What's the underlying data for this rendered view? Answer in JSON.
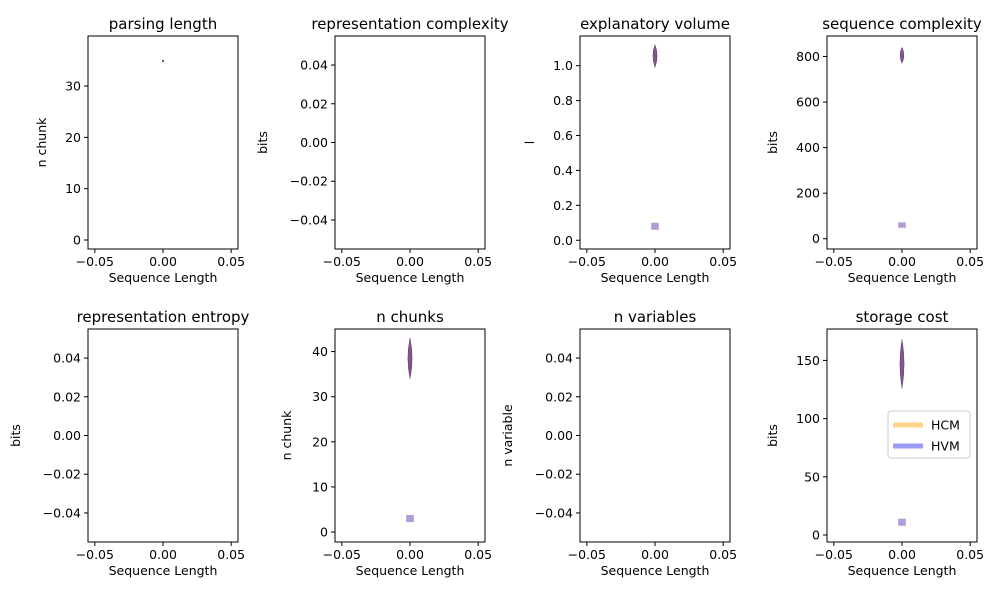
{
  "legend": {
    "placement": "right, inside storage cost panel",
    "entries": [
      {
        "label": "HCM",
        "color": "#ffd58a"
      },
      {
        "label": "HVM",
        "color": "#9c9cf5"
      }
    ]
  },
  "colors": {
    "violin_dark": "#6a3a78",
    "violin_light": "#a58bd0"
  },
  "chart_data": [
    {
      "type": "violin",
      "title": "parsing length",
      "xlabel": "Sequence Length",
      "ylabel": "n chunk",
      "xlim": [
        -0.055,
        0.055
      ],
      "ylim": [
        -1.75,
        39.75
      ],
      "xticks": [
        "−0.05",
        "0.00",
        "0.05"
      ],
      "yticks": [
        {
          "v": 0,
          "label": "0"
        },
        {
          "v": 10,
          "label": "10"
        },
        {
          "v": 20,
          "label": "20"
        },
        {
          "v": 30,
          "label": "30"
        }
      ],
      "violins": [
        {
          "x": 0.0,
          "center": 34.9,
          "low": 34.6,
          "high": 35.1,
          "width": 0.001,
          "shade": "dark"
        }
      ]
    },
    {
      "type": "violin",
      "title": "representation complexity",
      "xlabel": "Sequence Length",
      "ylabel": "bits",
      "xlim": [
        -0.055,
        0.055
      ],
      "ylim": [
        -0.055,
        0.055
      ],
      "xticks": [
        "−0.05",
        "0.00",
        "0.05"
      ],
      "yticks": [
        {
          "v": -0.04,
          "label": "−0.04"
        },
        {
          "v": -0.02,
          "label": "−0.02"
        },
        {
          "v": 0.0,
          "label": "0.00"
        },
        {
          "v": 0.02,
          "label": "0.02"
        },
        {
          "v": 0.04,
          "label": "0.04"
        }
      ],
      "violins": []
    },
    {
      "type": "violin",
      "title": "explanatory volume",
      "xlabel": "Sequence Length",
      "ylabel": "l",
      "xlim": [
        -0.055,
        0.055
      ],
      "ylim": [
        -0.05,
        1.17
      ],
      "xticks": [
        "−0.05",
        "0.00",
        "0.05"
      ],
      "yticks": [
        {
          "v": 0.0,
          "label": "0.0"
        },
        {
          "v": 0.2,
          "label": "0.2"
        },
        {
          "v": 0.4,
          "label": "0.4"
        },
        {
          "v": 0.6,
          "label": "0.6"
        },
        {
          "v": 0.8,
          "label": "0.8"
        },
        {
          "v": 1.0,
          "label": "1.0"
        }
      ],
      "violins": [
        {
          "x": 0.0,
          "center": 1.06,
          "low": 0.99,
          "high": 1.12,
          "width": 0.0022,
          "shade": "dark"
        },
        {
          "x": 0.0,
          "center": 0.08,
          "low": 0.06,
          "high": 0.1,
          "width": 0.0028,
          "shade": "light",
          "shape": "box"
        }
      ]
    },
    {
      "type": "violin",
      "title": "sequence complexity",
      "xlabel": "Sequence Length",
      "ylabel": "bits",
      "xlim": [
        -0.055,
        0.055
      ],
      "ylim": [
        -45,
        890
      ],
      "xticks": [
        "−0.05",
        "0.00",
        "0.05"
      ],
      "yticks": [
        {
          "v": 0,
          "label": "0"
        },
        {
          "v": 200,
          "label": "200"
        },
        {
          "v": 400,
          "label": "400"
        },
        {
          "v": 600,
          "label": "600"
        },
        {
          "v": 800,
          "label": "800"
        }
      ],
      "violins": [
        {
          "x": 0.0,
          "center": 805,
          "low": 770,
          "high": 840,
          "width": 0.002,
          "shade": "dark"
        },
        {
          "x": 0.0,
          "center": 60,
          "low": 48,
          "high": 72,
          "width": 0.0028,
          "shade": "light",
          "shape": "box"
        }
      ]
    },
    {
      "type": "violin",
      "title": "representation entropy",
      "xlabel": "Sequence Length",
      "ylabel": "bits",
      "xlim": [
        -0.055,
        0.055
      ],
      "ylim": [
        -0.055,
        0.055
      ],
      "xticks": [
        "−0.05",
        "0.00",
        "0.05"
      ],
      "yticks": [
        {
          "v": -0.04,
          "label": "−0.04"
        },
        {
          "v": -0.02,
          "label": "−0.02"
        },
        {
          "v": 0.0,
          "label": "0.00"
        },
        {
          "v": 0.02,
          "label": "0.02"
        },
        {
          "v": 0.04,
          "label": "0.04"
        }
      ],
      "violins": []
    },
    {
      "type": "violin",
      "title": "n chunks",
      "xlabel": "Sequence Length",
      "ylabel": "n chunk",
      "xlim": [
        -0.055,
        0.055
      ],
      "ylim": [
        -2.2,
        45
      ],
      "xticks": [
        "−0.05",
        "0.00",
        "0.05"
      ],
      "yticks": [
        {
          "v": 0,
          "label": "0"
        },
        {
          "v": 10,
          "label": "10"
        },
        {
          "v": 20,
          "label": "20"
        },
        {
          "v": 30,
          "label": "30"
        },
        {
          "v": 40,
          "label": "40"
        }
      ],
      "violins": [
        {
          "x": 0.0,
          "center": 38.5,
          "low": 34,
          "high": 43,
          "width": 0.0022,
          "shade": "dark"
        },
        {
          "x": 0.0,
          "center": 3,
          "low": 2.2,
          "high": 3.8,
          "width": 0.0028,
          "shade": "light",
          "shape": "box"
        }
      ]
    },
    {
      "type": "violin",
      "title": "n variables",
      "xlabel": "Sequence Length",
      "ylabel": "n variable",
      "xlim": [
        -0.055,
        0.055
      ],
      "ylim": [
        -0.055,
        0.055
      ],
      "xticks": [
        "−0.05",
        "0.00",
        "0.05"
      ],
      "yticks": [
        {
          "v": -0.04,
          "label": "−0.04"
        },
        {
          "v": -0.02,
          "label": "−0.02"
        },
        {
          "v": 0.0,
          "label": "0.00"
        },
        {
          "v": 0.02,
          "label": "0.02"
        },
        {
          "v": 0.04,
          "label": "0.04"
        }
      ],
      "violins": []
    },
    {
      "type": "violin",
      "title": "storage cost",
      "xlabel": "Sequence Length",
      "ylabel": "bits",
      "xlim": [
        -0.055,
        0.055
      ],
      "ylim": [
        -6,
        177
      ],
      "xticks": [
        "−0.05",
        "0.00",
        "0.05"
      ],
      "yticks": [
        {
          "v": 0,
          "label": "0"
        },
        {
          "v": 50,
          "label": "50"
        },
        {
          "v": 100,
          "label": "100"
        },
        {
          "v": 150,
          "label": "150"
        }
      ],
      "violins": [
        {
          "x": 0.0,
          "center": 147,
          "low": 126,
          "high": 168,
          "width": 0.0022,
          "shade": "dark"
        },
        {
          "x": 0.0,
          "center": 11,
          "low": 8,
          "high": 14,
          "width": 0.0028,
          "shade": "light",
          "shape": "box"
        }
      ]
    }
  ]
}
